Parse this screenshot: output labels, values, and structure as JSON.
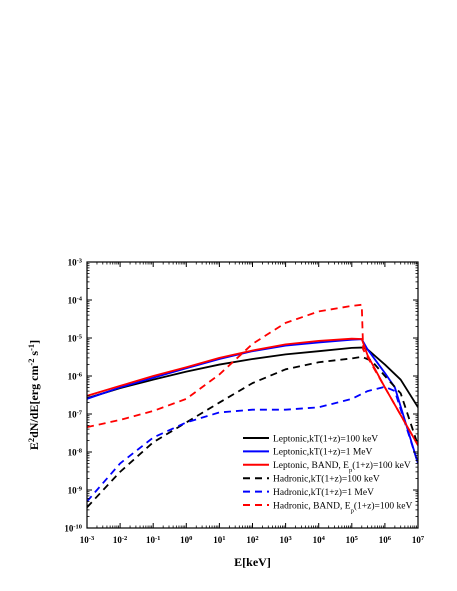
{
  "chart_data": {
    "type": "line",
    "xlabel_parts": [
      "E[keV]"
    ],
    "ylabel_parts": [
      {
        "t": "E"
      },
      {
        "t": "2",
        "sup": true
      },
      {
        "t": "dN/dE[erg cm"
      },
      {
        "t": "-2",
        "sup": true
      },
      {
        "t": " s"
      },
      {
        "t": "-1",
        "sup": true
      },
      {
        "t": "]"
      }
    ],
    "xscale": "log",
    "yscale": "log",
    "xlim": [
      0.001,
      10000000
    ],
    "ylim": [
      1e-10,
      0.001
    ],
    "x_ticks": [
      {
        "v": 0.001,
        "m": "10",
        "e": "-3"
      },
      {
        "v": 0.01,
        "m": "10",
        "e": "-2"
      },
      {
        "v": 0.1,
        "m": "10",
        "e": "-1"
      },
      {
        "v": 1,
        "m": "10",
        "e": "0"
      },
      {
        "v": 10,
        "m": "10",
        "e": "1"
      },
      {
        "v": 100,
        "m": "10",
        "e": "2"
      },
      {
        "v": 1000,
        "m": "10",
        "e": "3"
      },
      {
        "v": 10000,
        "m": "10",
        "e": "4"
      },
      {
        "v": 100000,
        "m": "10",
        "e": "5"
      },
      {
        "v": 1000000,
        "m": "10",
        "e": "6"
      },
      {
        "v": 10000000,
        "m": "10",
        "e": "7"
      }
    ],
    "y_ticks": [
      {
        "v": 1e-10,
        "m": "10",
        "e": "-10"
      },
      {
        "v": 1e-09,
        "m": "10",
        "e": "-9"
      },
      {
        "v": 1e-08,
        "m": "10",
        "e": "-8"
      },
      {
        "v": 1e-07,
        "m": "10",
        "e": "-7"
      },
      {
        "v": 1e-06,
        "m": "10",
        "e": "-6"
      },
      {
        "v": 1e-05,
        "m": "10",
        "e": "-5"
      },
      {
        "v": 0.0001,
        "m": "10",
        "e": "-4"
      },
      {
        "v": 0.001,
        "m": "10",
        "e": "-3"
      }
    ],
    "legend_position": "lower-right",
    "series": [
      {
        "name_parts": [
          {
            "t": "Leptonic,kT(1+z)=100 keV"
          }
        ],
        "color": "#000000",
        "dash": "solid",
        "x": [
          0.001,
          0.01,
          0.1,
          1,
          10,
          100,
          1000,
          10000,
          100000,
          200000,
          300000,
          1000000,
          3000000,
          10000000
        ],
        "y": [
          2.6e-07,
          4.8e-07,
          8e-07,
          1.3e-06,
          2e-06,
          2.8e-06,
          3.7e-06,
          4.5e-06,
          5.5e-06,
          5.6e-06,
          5e-06,
          2e-06,
          8e-07,
          1.5e-07
        ]
      },
      {
        "name_parts": [
          {
            "t": "Leptonic,kT(1+z)=1 MeV"
          }
        ],
        "color": "#0000ff",
        "dash": "solid",
        "x": [
          0.001,
          0.01,
          0.1,
          1,
          10,
          100,
          1000,
          10000,
          100000,
          200000,
          300000,
          1000000,
          2000000,
          10000000
        ],
        "y": [
          2.5e-07,
          5e-07,
          9e-07,
          1.6e-06,
          2.8e-06,
          4.5e-06,
          6.3e-06,
          7.6e-06,
          9e-06,
          9.3e-06,
          5e-06,
          1.2e-06,
          5e-07,
          5e-09
        ]
      },
      {
        "name_parts": [
          {
            "t": "Leptonic, BAND, E"
          },
          {
            "t": "p",
            "sub": true
          },
          {
            "t": "(1+z)=100 keV"
          }
        ],
        "color": "#ff0000",
        "dash": "solid",
        "x": [
          0.001,
          0.01,
          0.1,
          1,
          10,
          100,
          1000,
          10000,
          100000,
          200000,
          300000,
          1000000,
          10000000
        ],
        "y": [
          3e-07,
          5.5e-07,
          1e-06,
          1.7e-06,
          3e-06,
          4.7e-06,
          6.8e-06,
          8.4e-06,
          9.6e-06,
          9.4e-06,
          3.5e-06,
          5e-07,
          1.5e-08
        ]
      },
      {
        "name_parts": [
          {
            "t": "Hadronic,kT(1+z)=100 keV"
          }
        ],
        "color": "#000000",
        "dash": "dashed",
        "x": [
          0.001,
          0.01,
          0.1,
          1,
          10,
          100,
          1000,
          10000,
          100000,
          200000,
          400000,
          1000000,
          3000000,
          10000000
        ],
        "y": [
          3.5e-10,
          3e-09,
          1.8e-08,
          6e-08,
          2e-07,
          6.5e-07,
          1.5e-06,
          2.3e-06,
          2.9e-06,
          3.2e-06,
          2.5e-06,
          1e-06,
          3.5e-07,
          1.5e-08
        ]
      },
      {
        "name_parts": [
          {
            "t": "Hadronic,kT(1+z)=1 MeV"
          }
        ],
        "color": "#0000ff",
        "dash": "dashed",
        "x": [
          0.001,
          0.01,
          0.1,
          1,
          10,
          100,
          1000,
          10000,
          100000,
          300000,
          1000000,
          2000000,
          10000000
        ],
        "y": [
          5e-10,
          5e-09,
          2.4e-08,
          6e-08,
          1.1e-07,
          1.3e-07,
          1.3e-07,
          1.5e-07,
          2.5e-07,
          4e-07,
          5.2e-07,
          4e-07,
          5e-09
        ]
      },
      {
        "name_parts": [
          {
            "t": "Hadronic, BAND, E"
          },
          {
            "t": "p",
            "sub": true
          },
          {
            "t": "(1+z)=100 keV"
          }
        ],
        "color": "#ff0000",
        "dash": "dashed",
        "x": [
          0.001,
          0.01,
          0.1,
          1,
          10,
          100,
          1000,
          10000,
          100000,
          200000,
          220000,
          1000000,
          10000000
        ],
        "y": [
          4.5e-08,
          7e-08,
          1.2e-07,
          2.5e-07,
          1.1e-06,
          7e-06,
          2.5e-05,
          5e-05,
          7e-05,
          7.5e-05,
          5e-06,
          5e-07,
          1.5e-08
        ]
      }
    ]
  }
}
